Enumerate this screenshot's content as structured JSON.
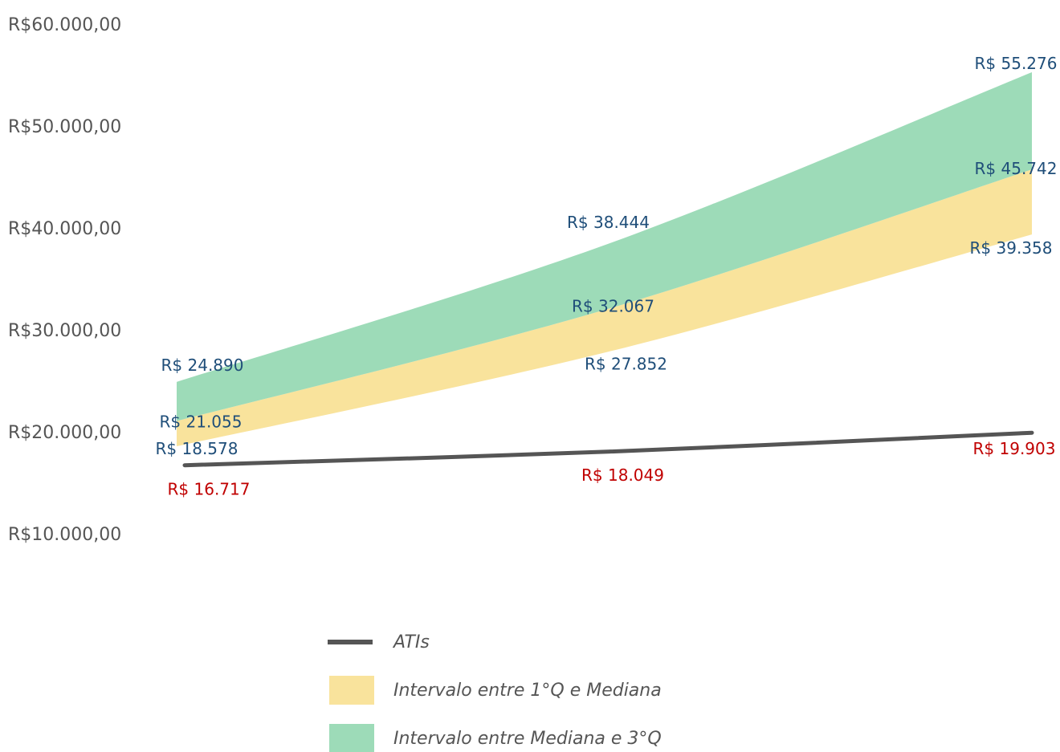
{
  "chart_data": {
    "type": "area",
    "title": "",
    "xlabel": "",
    "ylabel": "",
    "ylim": [
      10000,
      60000
    ],
    "y_ticks": [
      {
        "value": 60000,
        "label": "R$60.000,00"
      },
      {
        "value": 50000,
        "label": "R$50.000,00"
      },
      {
        "value": 40000,
        "label": "R$40.000,00"
      },
      {
        "value": 30000,
        "label": "R$30.000,00"
      },
      {
        "value": 20000,
        "label": "R$20.000,00"
      },
      {
        "value": 10000,
        "label": "R$10.000,00"
      }
    ],
    "x": [
      0,
      1,
      2
    ],
    "grid": false,
    "legend_position": "bottom",
    "series": [
      {
        "name": "ATIs",
        "type": "line",
        "color": "#555555",
        "values": [
          16717,
          18049,
          19903
        ],
        "labels": [
          "R$ 16.717",
          "R$ 18.049",
          "R$ 19.903"
        ],
        "label_color": "#c00000"
      },
      {
        "name": "Intervalo entre 1°Q e Mediana",
        "type": "band",
        "color": "#f9e39c",
        "lower": [
          18578,
          27852,
          39358
        ],
        "upper": [
          21055,
          32067,
          45742
        ],
        "lower_labels": [
          "R$ 18.578",
          "R$ 27.852",
          "R$ 39.358"
        ],
        "upper_labels": [
          "R$ 21.055",
          "R$ 32.067",
          "R$ 45.742"
        ],
        "label_color": "#1f4e79"
      },
      {
        "name": "Intervalo entre Mediana e 3°Q",
        "type": "band",
        "color": "#9ddbb8",
        "lower": [
          21055,
          32067,
          45742
        ],
        "upper": [
          24890,
          38444,
          55276
        ],
        "upper_labels": [
          "R$ 24.890",
          "R$ 38.444",
          "R$ 55.276"
        ],
        "label_color": "#1f4e79"
      }
    ]
  }
}
